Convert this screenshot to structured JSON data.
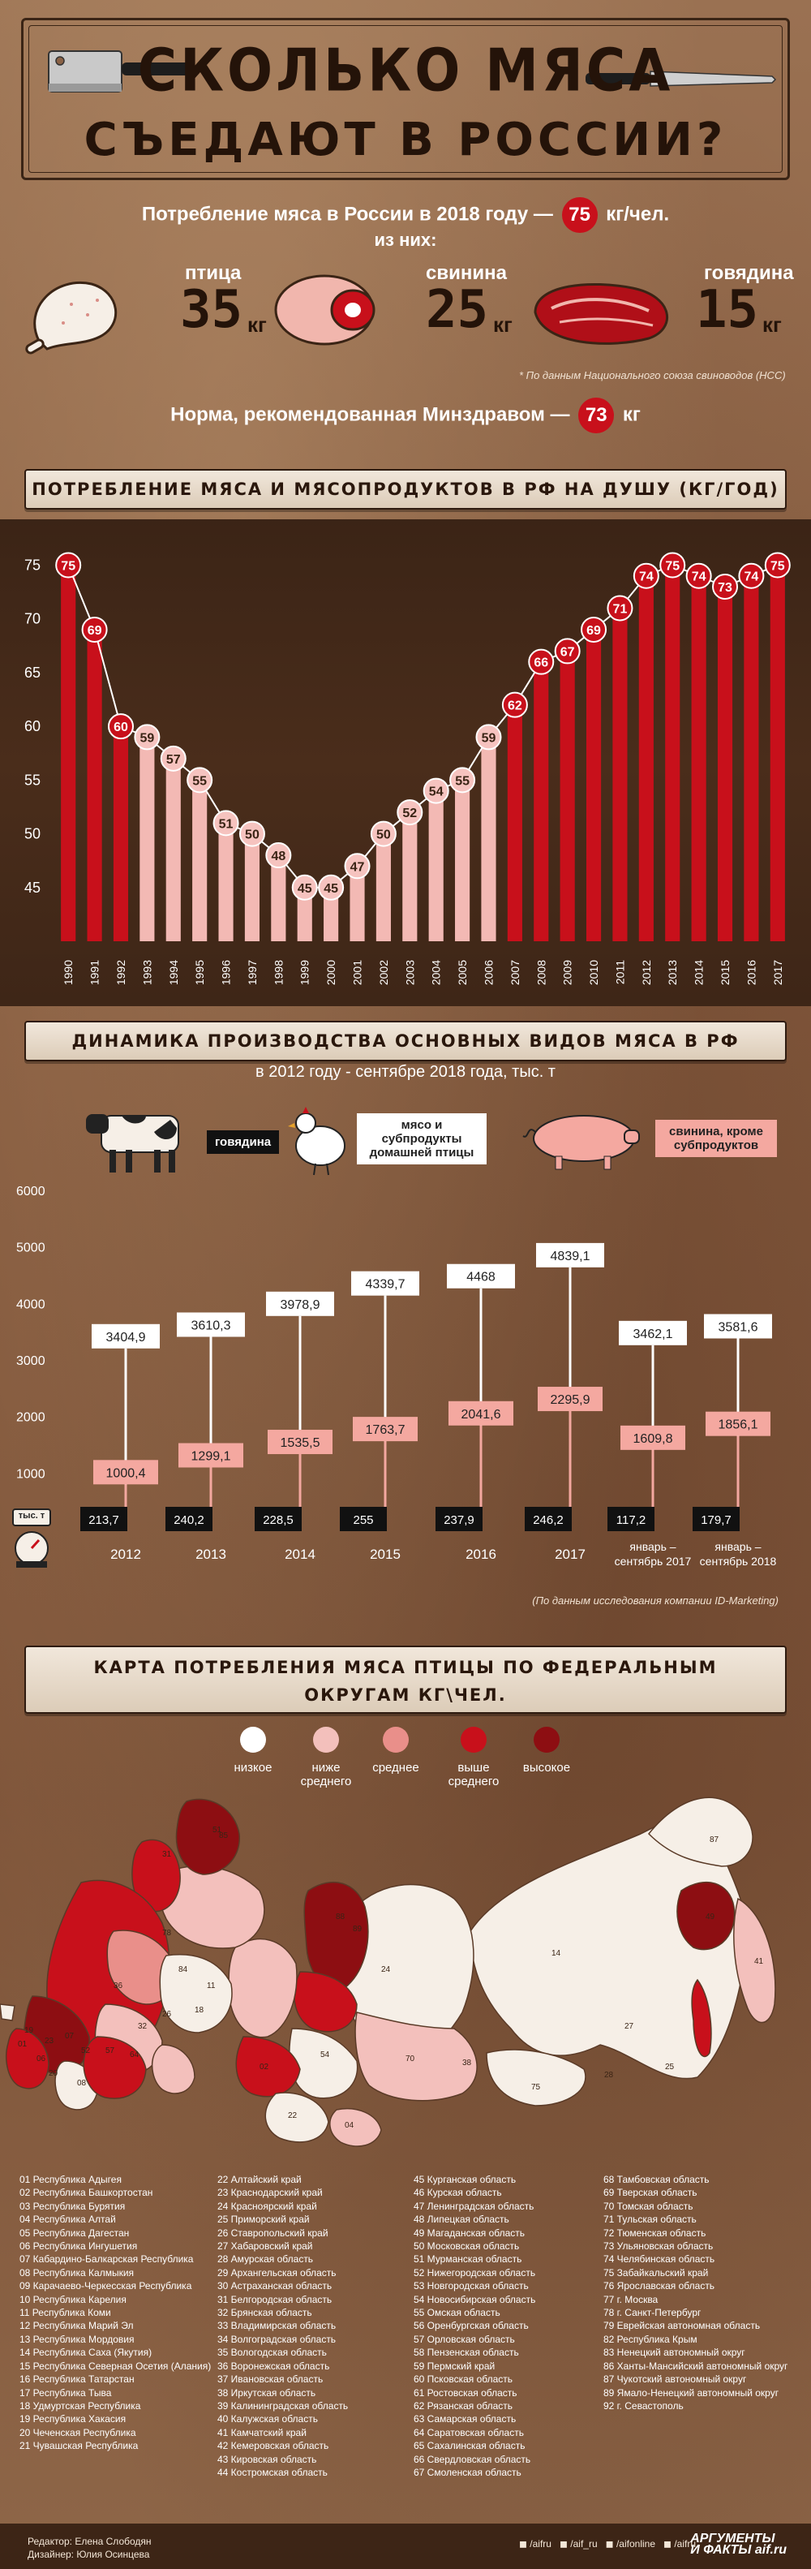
{
  "header": {
    "title_line1": "СКОЛЬКО МЯСА",
    "title_line2": "СЪЕДАЮТ В РОССИИ?"
  },
  "consumption": {
    "prefix": "Потребление мяса в России в 2018 году —",
    "value": "75",
    "suffix": "кг/чел.",
    "of_which": "из них:",
    "items": [
      {
        "label": "птица",
        "kg": "35",
        "unit": "кг"
      },
      {
        "label": "свинина",
        "kg": "25",
        "unit": "кг"
      },
      {
        "label": "говядина",
        "kg": "15",
        "unit": "кг"
      }
    ],
    "source": "* По данным Национального союза свиноводов (НСС)",
    "norm_text": "Норма, рекомендованная Минздравом —",
    "norm_value": "73",
    "norm_unit": "кг"
  },
  "section1": {
    "title": "ПОТРЕБЛЕНИЕ МЯСА И МЯСОПРОДУКТОВ В РФ НА ДУШУ (КГ/ГОД)"
  },
  "section2": {
    "title": "ДИНАМИКА ПРОИЗВОДСТВА ОСНОВНЫХ ВИДОВ МЯСА В РФ",
    "subtitle": "в 2012 году - сентябре 2018 года, тыс. т",
    "legend": [
      "говядина",
      "мясо и субпродукты домашней птицы",
      "свинина, кроме субпродуктов"
    ],
    "scale_label": "тыс. т",
    "source": "(По данным исследования компании ID-Marketing)"
  },
  "section3": {
    "title_line1": "КАРТА ПОТРЕБЛЕНИЯ МЯСА ПТИЦЫ ПО ФЕДЕРАЛЬНЫМ",
    "title_line2": "ОКРУГАМ КГ\\ЧЕЛ.",
    "legend": [
      {
        "label": "низкое",
        "color": "#ffffff"
      },
      {
        "label": "ниже среднего",
        "color": "#f3c0bc"
      },
      {
        "label": "среднее",
        "color": "#e98f8a"
      },
      {
        "label": "выше среднего",
        "color": "#c8101b"
      },
      {
        "label": "высокое",
        "color": "#8d0e12"
      }
    ]
  },
  "chart_data": [
    {
      "type": "bar",
      "categories": [
        "1990",
        "1991",
        "1992",
        "1993",
        "1994",
        "1995",
        "1996",
        "1997",
        "1998",
        "1999",
        "2000",
        "2001",
        "2002",
        "2003",
        "2004",
        "2005",
        "2006",
        "2007",
        "2008",
        "2009",
        "2010",
        "2011",
        "2012",
        "2013",
        "2014",
        "2015",
        "2016",
        "2017"
      ],
      "values": [
        75,
        69,
        60,
        59,
        57,
        55,
        51,
        50,
        48,
        45,
        45,
        47,
        50,
        52,
        54,
        55,
        59,
        62,
        66,
        67,
        69,
        71,
        74,
        75,
        74,
        73,
        74,
        75
      ],
      "ylim": [
        40,
        77
      ],
      "yticks": [
        45,
        50,
        55,
        60,
        65,
        70,
        75
      ],
      "colors": {
        "high": "#c8101b",
        "low": "#f3b9b4",
        "circle_high": "#c8101b",
        "circle_low": "#f6c3bf"
      }
    },
    {
      "type": "bar",
      "categories": [
        "2012",
        "2013",
        "2014",
        "2015",
        "2016",
        "2017",
        "январь – сентябрь 2017",
        "январь – сентябрь 2018"
      ],
      "series": [
        {
          "name": "говядина",
          "values": [
            213.7,
            240.2,
            228.5,
            255,
            237.9,
            246.2,
            117.2,
            179.7
          ]
        },
        {
          "name": "мясо и субпродукты домашней птицы",
          "values": [
            3404.9,
            3610.3,
            3978.9,
            4339.7,
            4468,
            4839.1,
            3462.1,
            3581.6
          ]
        },
        {
          "name": "свинина, кроме субпродуктов",
          "values": [
            1000.4,
            1299.1,
            1535.5,
            1763.7,
            2041.6,
            2295.9,
            1609.8,
            1856.1
          ]
        }
      ],
      "labels": {
        "beef": [
          "213,7",
          "240,2",
          "228,5",
          "255",
          "237,9",
          "246,2",
          "117,2",
          "179,7"
        ],
        "poultry": [
          "3404,9",
          "3610,3",
          "3978,9",
          "4339,7",
          "4468",
          "4839,1",
          "3462,1",
          "3581,6"
        ],
        "pork": [
          "1000,4",
          "1299,1",
          "1535,5",
          "1763,7",
          "2041,6",
          "2295,9",
          "1609,8",
          "1856,1"
        ]
      },
      "ylim": [
        0,
        6000
      ],
      "yticks": [
        "1000",
        "2000",
        "3000",
        "4000",
        "5000",
        "6000"
      ]
    }
  ],
  "map": {
    "numbers": [
      "51",
      "88",
      "78",
      "85",
      "31",
      "19",
      "52",
      "89",
      "84",
      "14",
      "87",
      "49",
      "24",
      "26",
      "41",
      "25",
      "27",
      "28",
      "38",
      "75",
      "54",
      "22",
      "04",
      "57",
      "11",
      "32",
      "70",
      "02",
      "64",
      "06",
      "20",
      "01",
      "18",
      "08",
      "23",
      "36",
      "07"
    ]
  },
  "regions": [
    [
      "01 Республика Адыгея",
      "02 Республика Башкортостан",
      "03 Республика Бурятия",
      "04 Республика Алтай",
      "05 Республика Дагестан",
      "06 Республика Ингушетия",
      "07 Кабардино-Балкарская Республика",
      "08 Республика Калмыкия",
      "09 Карачаево-Черкесская Республика",
      "10 Республика Карелия",
      "11 Республика Коми",
      "12 Республика Марий Эл",
      "13 Республика Мордовия",
      "14 Республика Саха (Якутия)",
      "15 Республика Северная Осетия (Алания)",
      "16 Республика Татарстан",
      "17 Республика Тыва",
      "18 Удмуртская Республика",
      "19 Республика Хакасия",
      "20 Чеченская Республика",
      "21 Чувашская Республика"
    ],
    [
      "22 Алтайский край",
      "23 Краснодарский край",
      "24 Красноярский край",
      "25 Приморский край",
      "26 Ставропольский край",
      "27 Хабаровский край",
      "28 Амурская область",
      "29 Архангельская область",
      "30 Астраханская область",
      "31 Белгородская область",
      "32 Брянская область",
      "33 Владимирская область",
      "34 Волгоградская область",
      "35 Вологодская область",
      "36 Воронежская область",
      "37 Ивановская область",
      "38 Иркутская область",
      "39 Калининградская область",
      "40 Калужская область",
      "41 Камчатский край",
      "42 Кемеровская область",
      "43 Кировская область",
      "44 Костромская область"
    ],
    [
      "45 Курганская область",
      "46 Курская область",
      "47 Ленинградская область",
      "48 Липецкая область",
      "49 Магаданская область",
      "50 Московская область",
      "51 Мурманская область",
      "52 Нижегородская область",
      "53 Новгородская область",
      "54 Новосибирская область",
      "55 Омская область",
      "56 Оренбургская область",
      "57 Орловская область",
      "58 Пензенская область",
      "59 Пермский край",
      "60 Псковская область",
      "61 Ростовская область",
      "62 Рязанская область",
      "63 Самарская область",
      "64 Саратовская область",
      "65 Сахалинская область",
      "66 Свердловская область",
      "67 Смоленская область"
    ],
    [
      "68 Тамбовская область",
      "69 Тверская область",
      "70 Томская область",
      "71 Тульская область",
      "72 Тюменская область",
      "73 Ульяновская область",
      "74 Челябинская область",
      "75 Забайкальский край",
      "76 Ярославская область",
      "77 г. Москва",
      "78 г. Санкт-Петербург",
      "79 Еврейская автономная область",
      "82 Республика Крым",
      "83 Ненецкий автономный округ",
      "86 Ханты-Мансийский автономный округ",
      "87 Чукотский автономный округ",
      "89 Ямало-Ненецкий автономный округ",
      "92 г. Севастополь"
    ]
  ],
  "footer": {
    "editor": "Редактор: Елена Слободян",
    "designer": "Дизайнер: Юлия Осинцева",
    "socials": [
      "/aifru",
      "/aif_ru",
      "/aifonline",
      "/aifru"
    ],
    "logo_line1": "АРГУМЕНТЫ",
    "logo_line2": "И ФАКТЫ aif.ru"
  }
}
